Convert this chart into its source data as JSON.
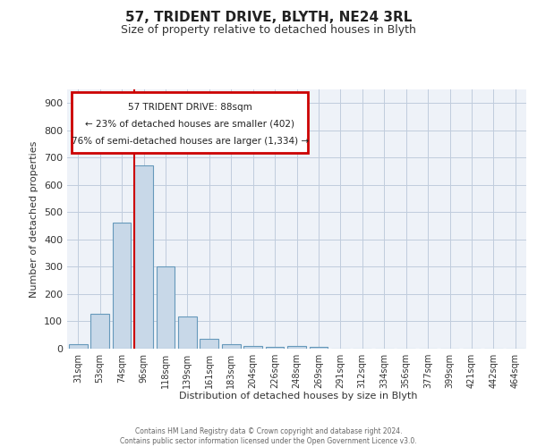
{
  "title1": "57, TRIDENT DRIVE, BLYTH, NE24 3RL",
  "title2": "Size of property relative to detached houses in Blyth",
  "xlabel": "Distribution of detached houses by size in Blyth",
  "ylabel": "Number of detached properties",
  "categories": [
    "31sqm",
    "53sqm",
    "74sqm",
    "96sqm",
    "118sqm",
    "139sqm",
    "161sqm",
    "183sqm",
    "204sqm",
    "226sqm",
    "248sqm",
    "269sqm",
    "291sqm",
    "312sqm",
    "334sqm",
    "356sqm",
    "377sqm",
    "399sqm",
    "421sqm",
    "442sqm",
    "464sqm"
  ],
  "values": [
    17,
    127,
    462,
    672,
    302,
    117,
    35,
    18,
    10,
    5,
    10,
    8,
    0,
    0,
    0,
    0,
    0,
    0,
    0,
    0,
    0
  ],
  "bar_color": "#c8d8e8",
  "bar_edge_color": "#6699bb",
  "vline_color": "#cc0000",
  "annotation_text_line1": "57 TRIDENT DRIVE: 88sqm",
  "annotation_text_line2": "← 23% of detached houses are smaller (402)",
  "annotation_text_line3": "76% of semi-detached houses are larger (1,334) →",
  "annotation_box_color": "#cc0000",
  "annotation_bg_color": "#ffffff",
  "grid_color": "#c0ccdd",
  "background_color": "#eef2f8",
  "ylim": [
    0,
    950
  ],
  "yticks": [
    0,
    100,
    200,
    300,
    400,
    500,
    600,
    700,
    800,
    900
  ],
  "footer_line1": "Contains HM Land Registry data © Crown copyright and database right 2024.",
  "footer_line2": "Contains public sector information licensed under the Open Government Licence v3.0."
}
